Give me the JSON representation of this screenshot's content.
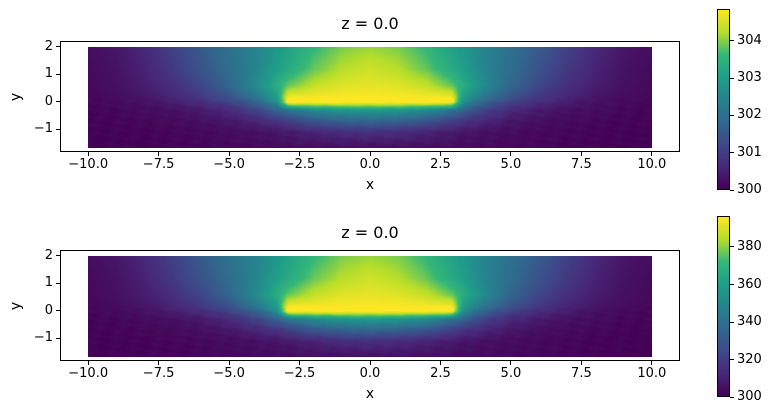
{
  "colors": {
    "background": "#ffffff",
    "text": "#000000",
    "axes_edge": "#000000",
    "viridis_stops": [
      "#440154",
      "#482878",
      "#3e4989",
      "#31688e",
      "#26828e",
      "#1f9e89",
      "#35b779",
      "#b5de2b",
      "#fde725"
    ]
  },
  "chart_data": [
    {
      "type": "heatmap",
      "title": "z = 0.0",
      "xlabel": "x",
      "ylabel": "y",
      "colormap": "viridis",
      "xlim": [
        -11,
        11
      ],
      "ylim": [
        -1.82,
        2.2
      ],
      "data_extent": {
        "x": [
          -10,
          10
        ],
        "y": [
          -1.65,
          2.0
        ]
      },
      "x_tick_values": [
        -10,
        -7.5,
        -5,
        -2.5,
        0,
        2.5,
        5,
        7.5,
        10
      ],
      "x_tick_labels": [
        "−10.0",
        "−7.5",
        "−5.0",
        "−2.5",
        "0.0",
        "2.5",
        "5.0",
        "7.5",
        "10.0"
      ],
      "y_tick_values": [
        2,
        1,
        0,
        -1
      ],
      "y_tick_labels": [
        "2",
        "1",
        "0",
        "−1"
      ],
      "colorbar": {
        "vmin": 300,
        "vmax": 304.85,
        "tick_values": [
          300,
          301,
          302,
          303,
          304
        ],
        "tick_labels": [
          "300",
          "301",
          "302",
          "303",
          "304"
        ]
      },
      "temperature_range": [
        300,
        304.85
      ],
      "heated_plate": {
        "x": [
          -3,
          3
        ],
        "y": [
          0,
          0.12
        ],
        "value": "max"
      },
      "description": "Temperature slice at z=0: heated plate from x=-3..3 at y≈0 with buoyant plume rising and narrowing above, cool wake below, ambient 300",
      "field_normalized": {
        "x_abs": [
          0,
          1,
          2,
          2.9,
          3.3,
          4,
          5,
          6,
          7,
          8,
          9,
          10
        ],
        "rows": [
          {
            "y": 2.0,
            "t": [
              0.85,
              0.82,
              0.74,
              0.645,
              0.6,
              0.51,
              0.42,
              0.32,
              0.22,
              0.13,
              0.07,
              0.04
            ]
          },
          {
            "y": 1.2,
            "t": [
              0.92,
              0.88,
              0.8,
              0.685,
              0.63,
              0.52,
              0.4,
              0.29,
              0.19,
              0.11,
              0.055,
              0.03
            ]
          },
          {
            "y": 0.6,
            "t": [
              0.96,
              0.95,
              0.9,
              0.8,
              0.7,
              0.55,
              0.37,
              0.24,
              0.15,
              0.09,
              0.05,
              0.025
            ]
          },
          {
            "y": 0.15,
            "t": [
              1,
              1,
              1,
              1,
              0.62,
              0.44,
              0.28,
              0.18,
              0.11,
              0.065,
              0.035,
              0.02
            ]
          },
          {
            "y": 0.0,
            "t": [
              1,
              1,
              1,
              1,
              0.55,
              0.36,
              0.22,
              0.14,
              0.09,
              0.05,
              0.03,
              0.02
            ]
          },
          {
            "y": -0.3,
            "t": [
              0.6,
              0.58,
              0.53,
              0.42,
              0.35,
              0.23,
              0.13,
              0.08,
              0.05,
              0.035,
              0.02,
              0.015
            ]
          },
          {
            "y": -0.7,
            "t": [
              0.36,
              0.34,
              0.29,
              0.21,
              0.17,
              0.12,
              0.07,
              0.045,
              0.03,
              0.02,
              0.015,
              0.01
            ]
          },
          {
            "y": -1.1,
            "t": [
              0.15,
              0.14,
              0.11,
              0.08,
              0.065,
              0.05,
              0.035,
              0.025,
              0.018,
              0.012,
              0.009,
              0.006
            ]
          },
          {
            "y": -1.65,
            "t": [
              0.05,
              0.048,
              0.044,
              0.038,
              0.034,
              0.03,
              0.024,
              0.018,
              0.012,
              0.009,
              0.007,
              0.005
            ]
          }
        ]
      }
    },
    {
      "type": "heatmap",
      "title": "z = 0.0",
      "xlabel": "x",
      "ylabel": "y",
      "colormap": "viridis",
      "xlim": [
        -11,
        11
      ],
      "ylim": [
        -1.82,
        2.2
      ],
      "data_extent": {
        "x": [
          -10,
          10
        ],
        "y": [
          -1.65,
          2.0
        ]
      },
      "x_tick_values": [
        -10,
        -7.5,
        -5,
        -2.5,
        0,
        2.5,
        5,
        7.5,
        10
      ],
      "x_tick_labels": [
        "−10.0",
        "−7.5",
        "−5.0",
        "−2.5",
        "0.0",
        "2.5",
        "5.0",
        "7.5",
        "10.0"
      ],
      "y_tick_values": [
        2,
        1,
        0,
        -1
      ],
      "y_tick_labels": [
        "2",
        "1",
        "0",
        "−1"
      ],
      "colorbar": {
        "vmin": 300,
        "vmax": 396.5,
        "tick_values": [
          300,
          320,
          340,
          360,
          380
        ],
        "tick_labels": [
          "300",
          "320",
          "340",
          "360",
          "380"
        ]
      },
      "temperature_range": [
        300,
        396.5
      ],
      "heated_plate": {
        "x": [
          -3,
          3
        ],
        "y": [
          0,
          0.12
        ],
        "value": "max"
      },
      "description": "Same slice with a hotter plate: identical normalized pattern, temperature scale 300–396",
      "field_normalized": {
        "x_abs": [
          0,
          1,
          2,
          2.9,
          3.3,
          4,
          5,
          6,
          7,
          8,
          9,
          10
        ],
        "rows": [
          {
            "y": 2.0,
            "t": [
              0.85,
              0.82,
              0.74,
              0.645,
              0.6,
              0.51,
              0.42,
              0.32,
              0.22,
              0.13,
              0.07,
              0.04
            ]
          },
          {
            "y": 1.2,
            "t": [
              0.92,
              0.88,
              0.8,
              0.685,
              0.63,
              0.52,
              0.4,
              0.29,
              0.19,
              0.11,
              0.055,
              0.03
            ]
          },
          {
            "y": 0.6,
            "t": [
              0.96,
              0.95,
              0.9,
              0.8,
              0.7,
              0.55,
              0.37,
              0.24,
              0.15,
              0.09,
              0.05,
              0.025
            ]
          },
          {
            "y": 0.15,
            "t": [
              1,
              1,
              1,
              1,
              0.62,
              0.44,
              0.28,
              0.18,
              0.11,
              0.065,
              0.035,
              0.02
            ]
          },
          {
            "y": 0.0,
            "t": [
              1,
              1,
              1,
              1,
              0.55,
              0.36,
              0.22,
              0.14,
              0.09,
              0.05,
              0.03,
              0.02
            ]
          },
          {
            "y": -0.3,
            "t": [
              0.6,
              0.58,
              0.53,
              0.42,
              0.35,
              0.23,
              0.13,
              0.08,
              0.05,
              0.035,
              0.02,
              0.015
            ]
          },
          {
            "y": -0.7,
            "t": [
              0.36,
              0.34,
              0.29,
              0.21,
              0.17,
              0.12,
              0.07,
              0.045,
              0.03,
              0.02,
              0.015,
              0.01
            ]
          },
          {
            "y": -1.1,
            "t": [
              0.15,
              0.14,
              0.11,
              0.08,
              0.065,
              0.05,
              0.035,
              0.025,
              0.018,
              0.012,
              0.009,
              0.006
            ]
          },
          {
            "y": -1.65,
            "t": [
              0.05,
              0.048,
              0.044,
              0.038,
              0.034,
              0.03,
              0.024,
              0.018,
              0.012,
              0.009,
              0.007,
              0.005
            ]
          }
        ]
      }
    }
  ]
}
